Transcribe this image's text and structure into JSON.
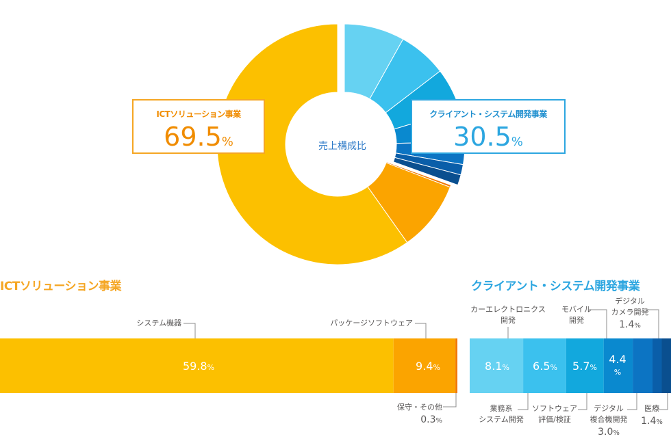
{
  "center_label": "売上構成比",
  "donut": {
    "ict": {
      "name": "ICTソリューション事業",
      "percent": "69.5",
      "unit": "%",
      "color": "#f08c00"
    },
    "client": {
      "name": "クライアント・システム開発事業",
      "percent": "30.5",
      "unit": "%",
      "color": "#2ca6e0"
    }
  },
  "ict_section": {
    "title": "ICTソリューション事業",
    "color": "#f5a623"
  },
  "client_section": {
    "title": "クライアント・システム開発事業",
    "color": "#2ca6e0"
  },
  "chart_data": [
    {
      "type": "pie",
      "title": "売上構成比",
      "slices": [
        {
          "group": "クライアント・システム開発事業",
          "value": 8.1,
          "color": "#66d2f2"
        },
        {
          "group": "クライアント・システム開発事業",
          "value": 6.5,
          "color": "#3bc1ee"
        },
        {
          "group": "クライアント・システム開発事業",
          "value": 5.7,
          "color": "#12a8dd"
        },
        {
          "group": "クライアント・システム開発事業",
          "value": 4.4,
          "color": "#0a89cf"
        },
        {
          "group": "クライアント・システム開発事業",
          "value": 3.0,
          "color": "#0c74c3"
        },
        {
          "group": "クライアント・システム開発事業",
          "value": 1.4,
          "color": "#0a5ea9"
        },
        {
          "group": "クライアント・システム開発事業",
          "value": 1.4,
          "color": "#0a4f8f"
        },
        {
          "group": "ICTソリューション事業",
          "value": 0.3,
          "color": "#f07800"
        },
        {
          "group": "ICTソリューション事業",
          "value": 9.4,
          "color": "#fba400"
        },
        {
          "group": "ICTソリューション事業",
          "value": 59.8,
          "color": "#fcc000"
        }
      ]
    },
    {
      "type": "bar",
      "title": "ICTソリューション事業",
      "orientation": "horizontal-stacked",
      "categories": [
        "システム機器",
        "パッケージソフトウェア",
        "保守・その他"
      ],
      "values": [
        59.8,
        9.4,
        0.3
      ],
      "value_labels": [
        "59.8",
        "9.4",
        "0.3"
      ],
      "unit": "%",
      "colors": [
        "#fcc000",
        "#fba400",
        "#f07800"
      ]
    },
    {
      "type": "bar",
      "title": "クライアント・システム開発事業",
      "orientation": "horizontal-stacked",
      "categories": [
        "カーエレクトロニクス開発",
        "業務系システム開発",
        "ソフトウェア評価/検証",
        "モバイル開発",
        "デジタル複合機開発",
        "デジタルカメラ開発",
        "医療"
      ],
      "values": [
        8.1,
        6.5,
        5.7,
        4.4,
        3.0,
        1.4,
        1.4
      ],
      "value_labels": [
        "8.1",
        "6.5",
        "5.7",
        "4.4",
        "3.0",
        "1.4",
        "1.4"
      ],
      "unit": "%",
      "colors": [
        "#66d2f2",
        "#3bc1ee",
        "#12a8dd",
        "#0a89cf",
        "#0c74c3",
        "#0a5ea9",
        "#0a4f8f"
      ]
    }
  ],
  "ict_labels": {
    "system": "システム機器",
    "package": "パッケージソフトウェア",
    "maint": "保守・その他",
    "maint_pct": "0.3"
  },
  "client_labels": {
    "car_1": "カーエレクトロニクス",
    "car_2": "開発",
    "mobile_1": "モバイル",
    "mobile_2": "開発",
    "camera_1": "デジタル",
    "camera_2": "カメラ開発",
    "camera_pct": "1.4",
    "gyomu_1": "業務系",
    "gyomu_2": "システム開発",
    "soft_1": "ソフトウェア",
    "soft_2": "評価/検証",
    "mfp_1": "デジタル",
    "mfp_2": "複合機開発",
    "mfp_pct": "3.0",
    "medical": "医療",
    "medical_pct": "1.4"
  }
}
